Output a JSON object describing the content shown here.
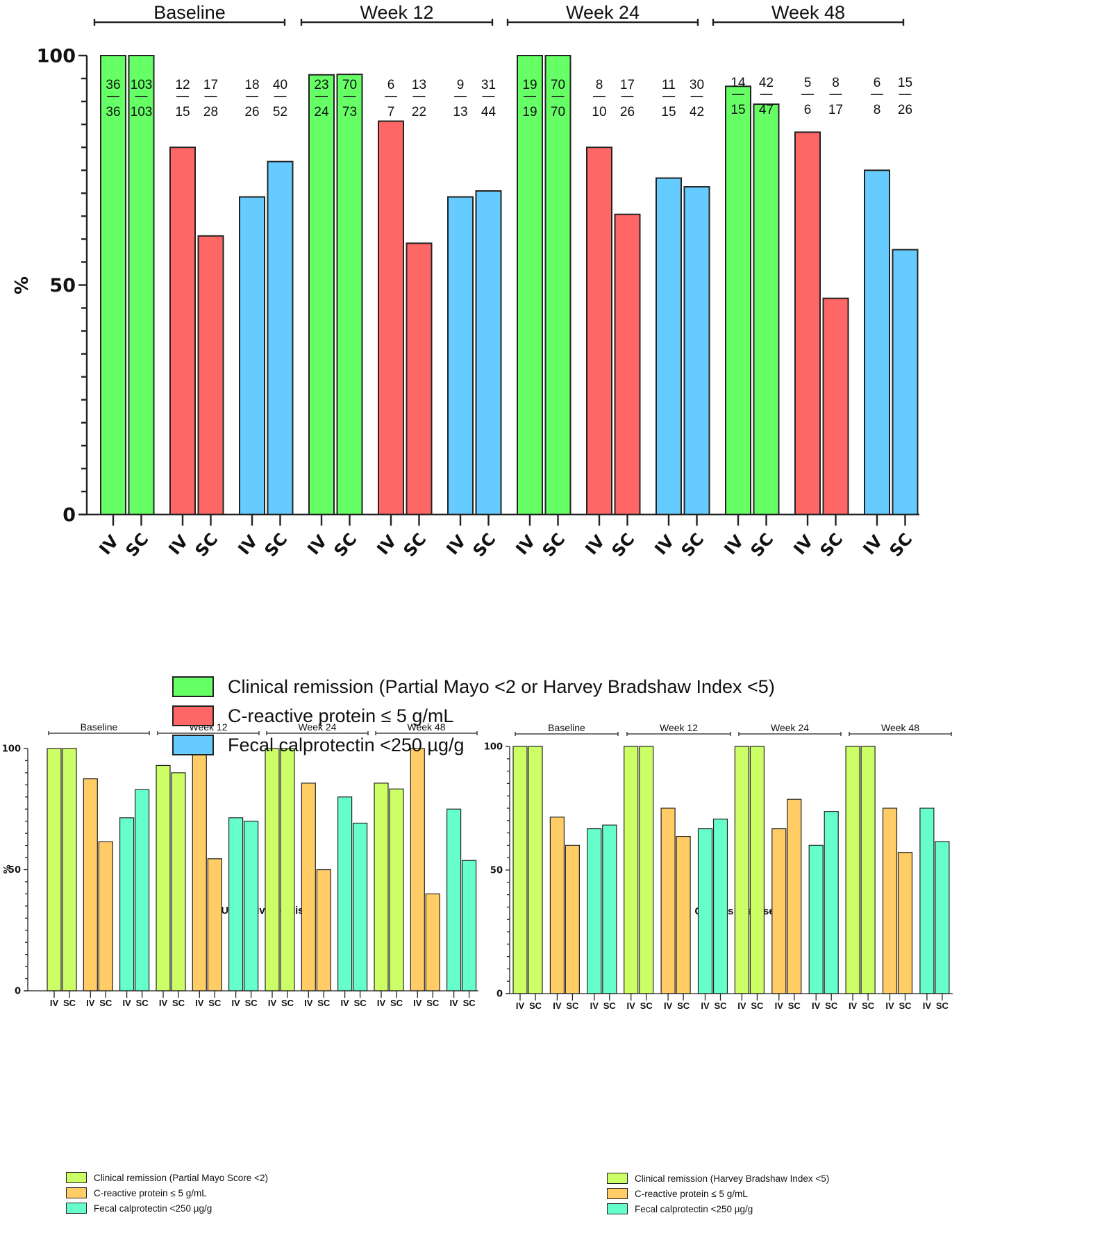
{
  "chart_data": [
    {
      "id": "overall",
      "type": "bar",
      "title": "",
      "xlabel": "",
      "ylabel": "%",
      "ylim": [
        0,
        100
      ],
      "yticks": [
        "0",
        "50",
        "100"
      ],
      "minor_tick_step": 5,
      "groups": [
        "Baseline",
        "Week 12",
        "Week 24",
        "Week 48"
      ],
      "routes": [
        "IV",
        "SC"
      ],
      "series": [
        {
          "name": "Clinical remission (Partial Mayo <2 or Harvey Bradshaw Index <5)",
          "color": "#66ff66",
          "values": [
            100,
            100,
            95.8,
            95.9,
            100,
            100,
            93.3,
            89.4
          ],
          "fractions": [
            [
              "36",
              "36"
            ],
            [
              "103",
              "103"
            ],
            [
              "23",
              "24"
            ],
            [
              "70",
              "73"
            ],
            [
              "19",
              "19"
            ],
            [
              "70",
              "70"
            ],
            [
              "14",
              "15"
            ],
            [
              "42",
              "47"
            ]
          ]
        },
        {
          "name": "C-reactive protein ≤ 5 g/mL",
          "color": "#ff6666",
          "values": [
            80,
            60.7,
            85.7,
            59.1,
            80,
            65.4,
            83.3,
            47.1
          ],
          "fractions": [
            [
              "12",
              "15"
            ],
            [
              "17",
              "28"
            ],
            [
              "6",
              "7"
            ],
            [
              "13",
              "22"
            ],
            [
              "8",
              "10"
            ],
            [
              "17",
              "26"
            ],
            [
              "5",
              "6"
            ],
            [
              "8",
              "17"
            ]
          ]
        },
        {
          "name": "Fecal calprotectin <250 µg/g",
          "color": "#66ccff",
          "values": [
            69.2,
            76.9,
            69.2,
            70.5,
            73.3,
            71.4,
            75,
            57.7
          ],
          "fractions": [
            [
              "18",
              "26"
            ],
            [
              "40",
              "52"
            ],
            [
              "9",
              "13"
            ],
            [
              "31",
              "44"
            ],
            [
              "11",
              "15"
            ],
            [
              "30",
              "42"
            ],
            [
              "6",
              "8"
            ],
            [
              "15",
              "26"
            ]
          ]
        }
      ],
      "legend_position": "bottom"
    },
    {
      "id": "uc",
      "type": "bar",
      "title": "Ulcerative colitis",
      "xlabel": "",
      "ylabel": "%",
      "ylim": [
        0,
        100
      ],
      "yticks": [
        "0",
        "50",
        "100"
      ],
      "minor_tick_step": 5,
      "groups": [
        "Baseline",
        "Week 12",
        "Week 24",
        "Week 48"
      ],
      "routes": [
        "IV",
        "SC"
      ],
      "series": [
        {
          "name": "Clinical remission (Partial Mayo Score <2)",
          "color": "#ccff66",
          "values": [
            100,
            100,
            93,
            90,
            100,
            100,
            85.7,
            83.3
          ]
        },
        {
          "name": "C-reactive protein ≤ 5 g/mL",
          "color": "#ffcc66",
          "values": [
            87.5,
            61.5,
            100,
            54.5,
            85.7,
            50,
            100,
            40
          ]
        },
        {
          "name": "Fecal calprotectin <250 µg/g",
          "color": "#66ffcc",
          "values": [
            71.4,
            83,
            71.4,
            70,
            80,
            69.2,
            75,
            53.8
          ]
        }
      ],
      "legend_position": "bottom-left"
    },
    {
      "id": "cd",
      "type": "bar",
      "title": "Crohn’s disease",
      "xlabel": "",
      "ylabel": "",
      "ylim": [
        0,
        100
      ],
      "yticks": [
        "0",
        "50",
        "100"
      ],
      "minor_tick_step": 5,
      "groups": [
        "Baseline",
        "Week 12",
        "Week 24",
        "Week 48"
      ],
      "routes": [
        "IV",
        "SC"
      ],
      "series": [
        {
          "name": "Clinical remission (Harvey Bradshaw Index <5)",
          "color": "#ccff66",
          "values": [
            100,
            100,
            100,
            100,
            100,
            100,
            100,
            100
          ]
        },
        {
          "name": "C-reactive protein ≤ 5 g/mL",
          "color": "#ffcc66",
          "values": [
            71.4,
            60,
            75,
            63.6,
            66.7,
            78.6,
            75,
            57.1
          ]
        },
        {
          "name": "Fecal calprotectin <250 µg/g",
          "color": "#66ffcc",
          "values": [
            66.7,
            68.2,
            66.7,
            70.6,
            60,
            73.7,
            75,
            61.5
          ]
        }
      ],
      "legend_position": "bottom-left"
    }
  ],
  "legends": {
    "overall": [
      "Clinical remission (Partial Mayo <2 or Harvey Bradshaw Index <5)",
      "C-reactive protein ≤ 5 g/mL",
      "Fecal calprotectin <250 µg/g"
    ],
    "uc": [
      "Clinical remission (Partial Mayo Score <2)",
      "C-reactive protein ≤ 5 g/mL",
      "Fecal calprotectin <250 µg/g"
    ],
    "cd": [
      "Clinical remission (Harvey Bradshaw Index <5)",
      "C-reactive protein ≤ 5 g/mL",
      "Fecal calprotectin <250 µg/g"
    ]
  },
  "colors": {
    "overall": [
      "#66ff66",
      "#ff6666",
      "#66ccff"
    ],
    "sub": [
      "#ccff66",
      "#ffcc66",
      "#66ffcc"
    ]
  }
}
